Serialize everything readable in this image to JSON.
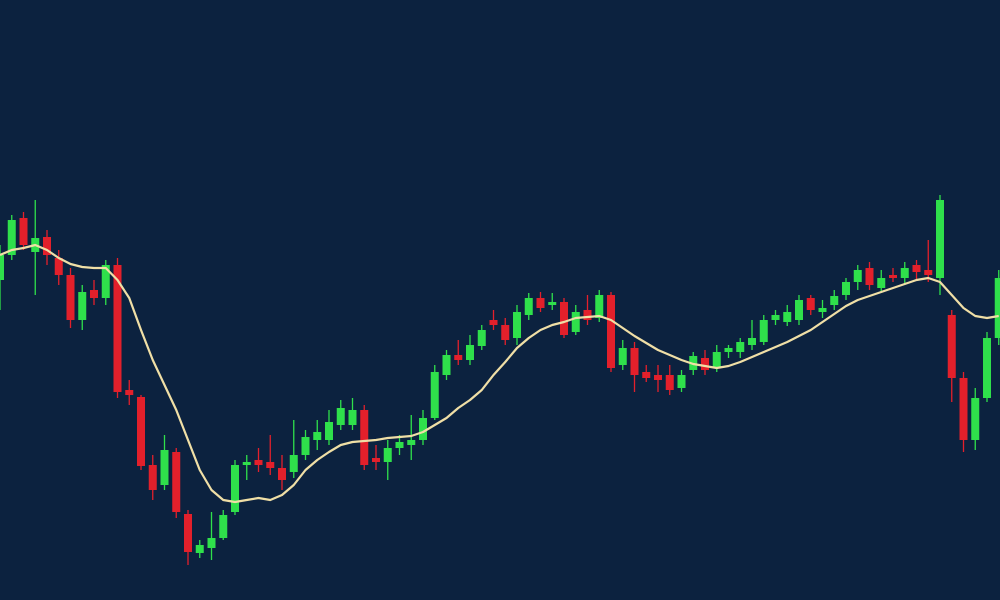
{
  "chart_data": {
    "type": "candlestick",
    "background": "#0c223f",
    "up_color": "#2fe04b",
    "down_color": "#e3202b",
    "ylim": [
      0,
      600
    ],
    "open": [
      320,
      345,
      382,
      348,
      363,
      342,
      325,
      280,
      310,
      302,
      335,
      210,
      203,
      135,
      115,
      148,
      86,
      47,
      52,
      62,
      88,
      135,
      140,
      138,
      132,
      128,
      145,
      160,
      160,
      175,
      175,
      190,
      142,
      138,
      152,
      155,
      160,
      182,
      225,
      245,
      240,
      254,
      280,
      275,
      262,
      285,
      302,
      295,
      298,
      268,
      290,
      282,
      305,
      235,
      252,
      228,
      225,
      225,
      212,
      230,
      242,
      232,
      248,
      248,
      255,
      258,
      280,
      278,
      280,
      302,
      288,
      295,
      305,
      318,
      332,
      312,
      325,
      322,
      335,
      330,
      322,
      285,
      222,
      160,
      202,
      262
    ],
    "high": [
      355,
      385,
      388,
      400,
      370,
      350,
      332,
      315,
      320,
      340,
      342,
      220,
      205,
      145,
      165,
      152,
      90,
      60,
      88,
      90,
      140,
      145,
      152,
      165,
      145,
      180,
      170,
      180,
      190,
      200,
      202,
      195,
      155,
      160,
      165,
      185,
      190,
      235,
      250,
      260,
      265,
      275,
      290,
      282,
      295,
      307,
      308,
      307,
      302,
      295,
      305,
      310,
      308,
      260,
      258,
      235,
      235,
      235,
      230,
      248,
      250,
      255,
      255,
      262,
      280,
      285,
      290,
      295,
      305,
      305,
      300,
      310,
      322,
      335,
      338,
      330,
      332,
      338,
      340,
      360,
      405,
      290,
      228,
      212,
      268,
      330
    ],
    "low": [
      290,
      340,
      350,
      305,
      335,
      315,
      272,
      270,
      295,
      295,
      202,
      195,
      130,
      100,
      110,
      82,
      35,
      42,
      40,
      60,
      85,
      120,
      128,
      125,
      110,
      122,
      140,
      150,
      155,
      170,
      170,
      130,
      130,
      120,
      145,
      140,
      155,
      180,
      220,
      235,
      235,
      250,
      270,
      255,
      255,
      280,
      288,
      290,
      262,
      265,
      275,
      278,
      228,
      230,
      208,
      218,
      208,
      205,
      208,
      225,
      225,
      228,
      242,
      242,
      250,
      255,
      275,
      274,
      275,
      285,
      282,
      290,
      300,
      310,
      310,
      308,
      318,
      315,
      320,
      318,
      305,
      198,
      148,
      150,
      198,
      255
    ],
    "close": [
      345,
      380,
      355,
      362,
      345,
      325,
      280,
      308,
      302,
      335,
      208,
      205,
      134,
      110,
      150,
      88,
      48,
      55,
      62,
      85,
      135,
      138,
      135,
      132,
      120,
      145,
      163,
      168,
      178,
      192,
      190,
      135,
      138,
      152,
      158,
      160,
      182,
      228,
      245,
      240,
      255,
      270,
      275,
      260,
      288,
      302,
      292,
      298,
      265,
      288,
      280,
      305,
      232,
      252,
      225,
      222,
      220,
      210,
      225,
      244,
      230,
      248,
      252,
      258,
      262,
      280,
      285,
      288,
      300,
      290,
      292,
      304,
      318,
      330,
      315,
      322,
      322,
      332,
      328,
      325,
      400,
      222,
      160,
      202,
      262,
      322
    ],
    "moving_average": {
      "color": "#f0dfa6",
      "values": [
        345,
        350,
        352,
        355,
        350,
        342,
        336,
        333,
        332,
        332,
        320,
        302,
        270,
        240,
        215,
        190,
        160,
        130,
        110,
        100,
        98,
        100,
        102,
        100,
        105,
        115,
        130,
        140,
        148,
        155,
        158,
        159,
        160,
        162,
        163,
        164,
        168,
        175,
        182,
        192,
        200,
        210,
        225,
        238,
        252,
        262,
        270,
        275,
        278,
        282,
        283,
        284,
        280,
        272,
        264,
        257,
        250,
        245,
        240,
        236,
        234,
        232,
        234,
        238,
        243,
        248,
        253,
        258,
        264,
        270,
        278,
        286,
        294,
        300,
        304,
        308,
        312,
        316,
        320,
        322,
        318,
        305,
        292,
        284,
        282,
        284
      ]
    }
  }
}
